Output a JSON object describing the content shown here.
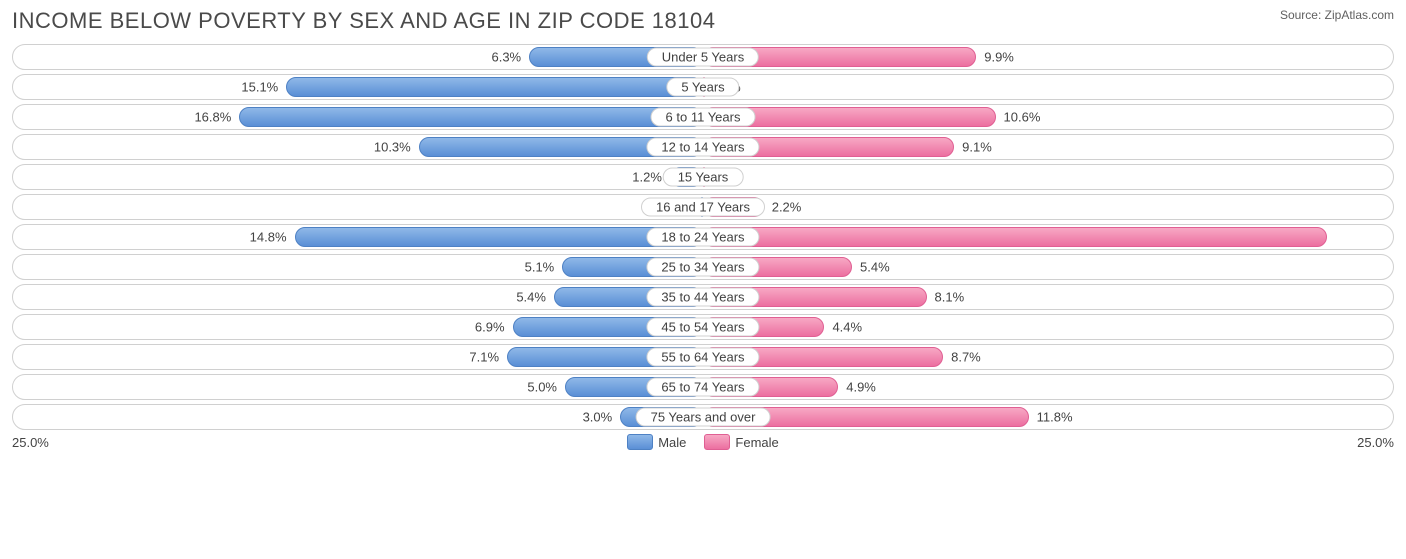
{
  "title": "INCOME BELOW POVERTY BY SEX AND AGE IN ZIP CODE 18104",
  "source": "Source: ZipAtlas.com",
  "chart": {
    "type": "diverging-bar",
    "axis_max": 25.0,
    "axis_left_label": "25.0%",
    "axis_right_label": "25.0%",
    "male_color": "#6a9bd8",
    "male_border": "#4e81c4",
    "female_color": "#ef7fab",
    "female_border": "#e05f93",
    "track_border": "#d0d0d0",
    "background": "#ffffff",
    "label_color": "#434343",
    "rows": [
      {
        "category": "Under 5 Years",
        "male": 6.3,
        "female": 9.9
      },
      {
        "category": "5 Years",
        "male": 15.1,
        "female": 0.0
      },
      {
        "category": "6 to 11 Years",
        "male": 16.8,
        "female": 10.6
      },
      {
        "category": "12 to 14 Years",
        "male": 10.3,
        "female": 9.1
      },
      {
        "category": "15 Years",
        "male": 1.2,
        "female": 0.0
      },
      {
        "category": "16 and 17 Years",
        "male": 0.0,
        "female": 2.2
      },
      {
        "category": "18 to 24 Years",
        "male": 14.8,
        "female": 22.6,
        "female_label_inside": true
      },
      {
        "category": "25 to 34 Years",
        "male": 5.1,
        "female": 5.4
      },
      {
        "category": "35 to 44 Years",
        "male": 5.4,
        "female": 8.1
      },
      {
        "category": "45 to 54 Years",
        "male": 6.9,
        "female": 4.4
      },
      {
        "category": "55 to 64 Years",
        "male": 7.1,
        "female": 8.7
      },
      {
        "category": "65 to 74 Years",
        "male": 5.0,
        "female": 4.9
      },
      {
        "category": "75 Years and over",
        "male": 3.0,
        "female": 11.8
      }
    ]
  },
  "legend": {
    "male": "Male",
    "female": "Female"
  }
}
